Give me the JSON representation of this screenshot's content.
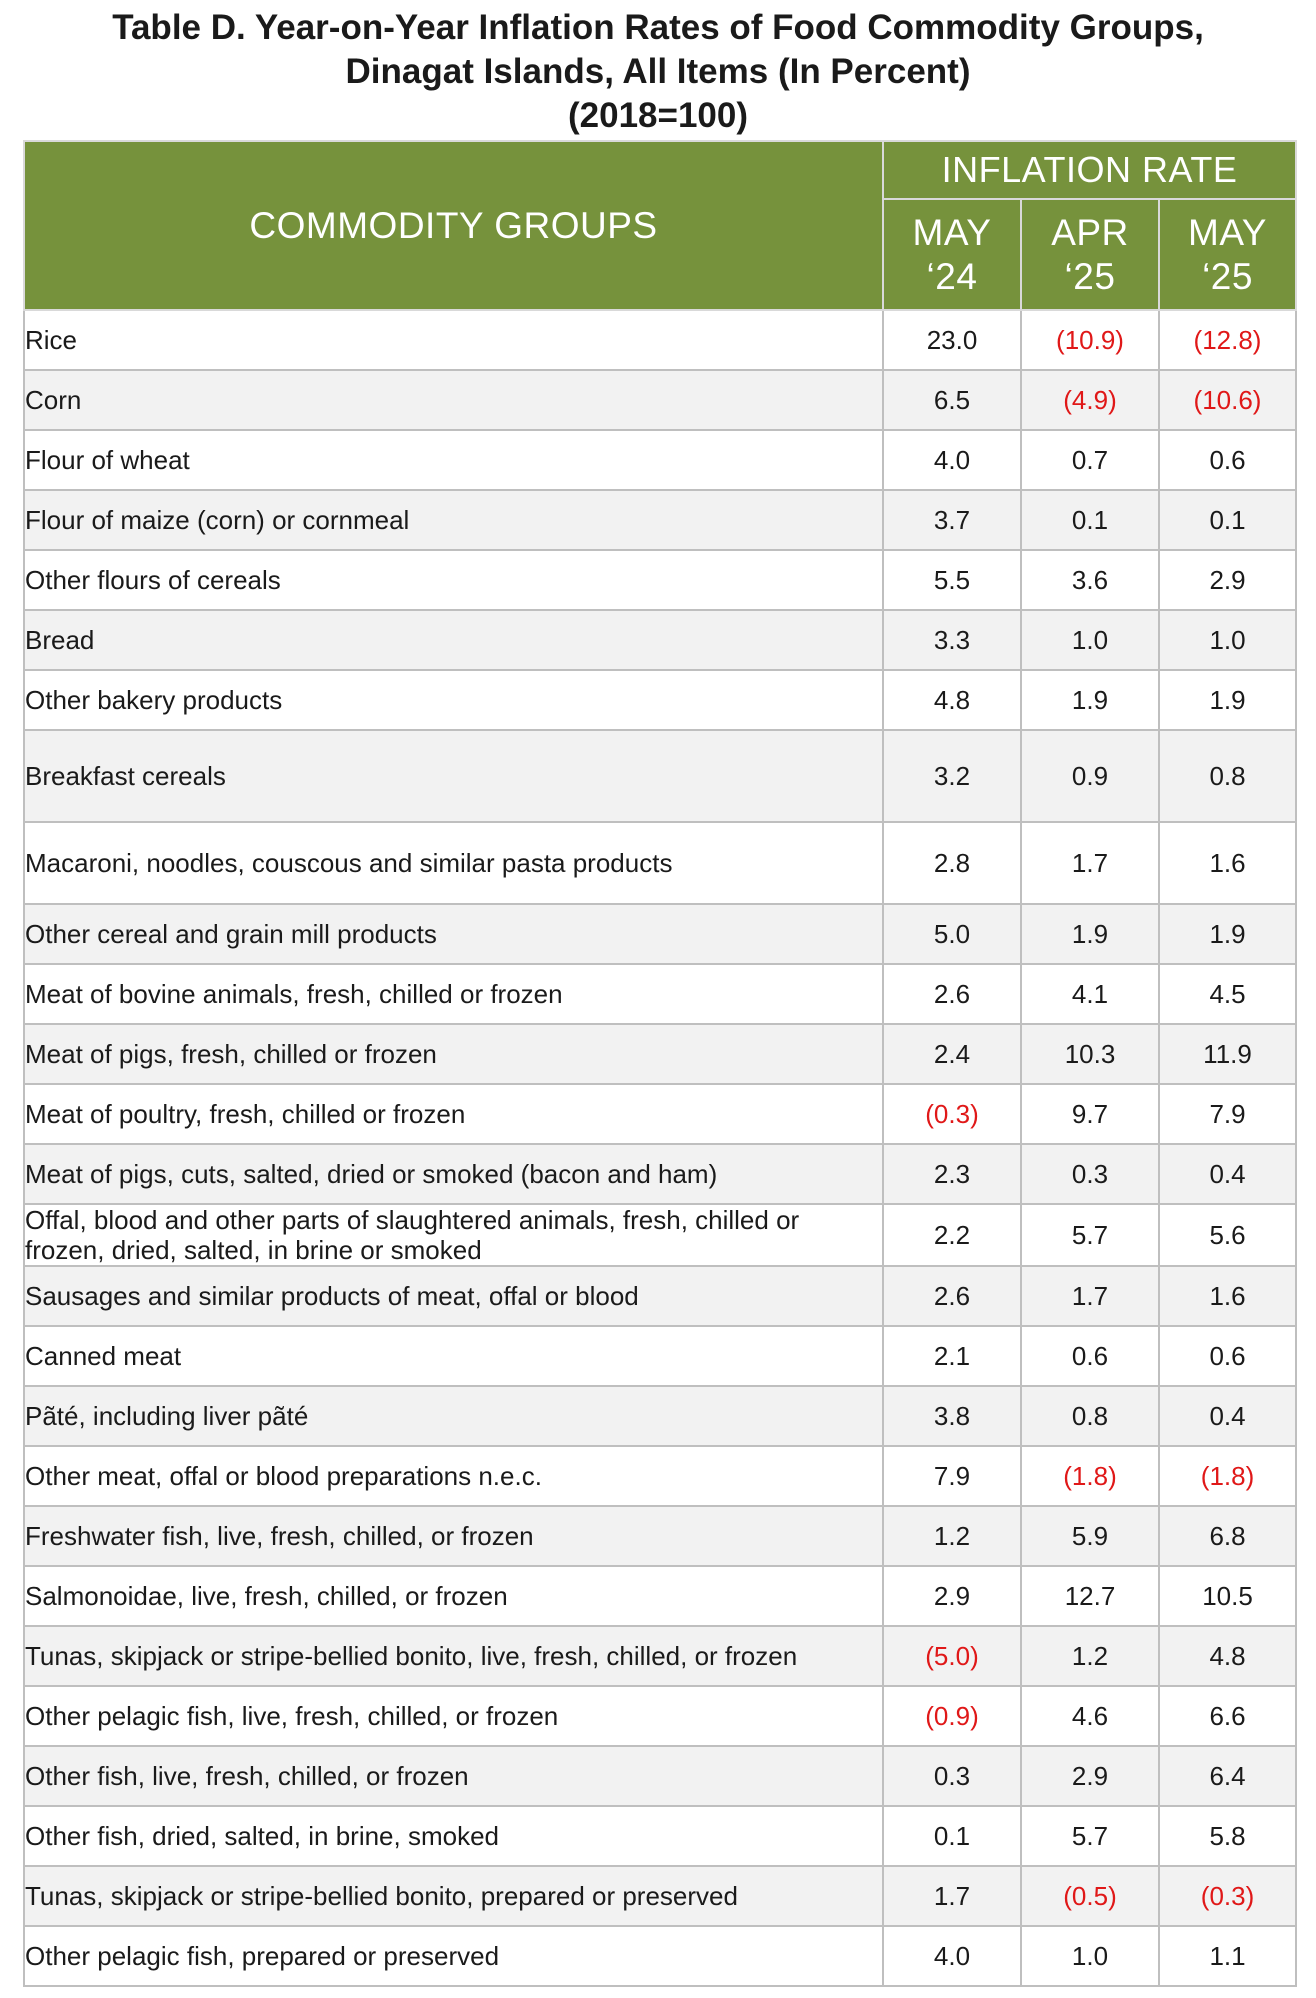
{
  "title": {
    "line1": "Table D. Year-on-Year Inflation Rates of Food Commodity Groups,",
    "line2": "Dinagat Islands, All Items (In Percent)",
    "line3": "(2018=100)"
  },
  "header": {
    "commodity_groups": "COMMODITY GROUPS",
    "inflation_rate": "INFLATION RATE",
    "col1_month": "MAY",
    "col1_year": "‘24",
    "col2_month": "APR",
    "col2_year": "‘25",
    "col3_month": "MAY",
    "col3_year": "‘25"
  },
  "colors": {
    "header_bg": "#76923c",
    "negative": "#e01818",
    "stripe": "#f2f2f2"
  },
  "rows": [
    {
      "name": "Rice",
      "v1": "23.0",
      "v2": "(10.9)",
      "v3": "(12.8)"
    },
    {
      "name": "Corn",
      "v1": "6.5",
      "v2": "(4.9)",
      "v3": "(10.6)"
    },
    {
      "name": "Flour of wheat",
      "v1": "4.0",
      "v2": "0.7",
      "v3": "0.6"
    },
    {
      "name": "Flour of maize (corn) or cornmeal",
      "v1": "3.7",
      "v2": "0.1",
      "v3": "0.1"
    },
    {
      "name": "Other flours of cereals",
      "v1": "5.5",
      "v2": "3.6",
      "v3": "2.9"
    },
    {
      "name": "Bread",
      "v1": "3.3",
      "v2": "1.0",
      "v3": "1.0"
    },
    {
      "name": "Other bakery products",
      "v1": "4.8",
      "v2": "1.9",
      "v3": "1.9"
    },
    {
      "name": "Breakfast cereals",
      "v1": "3.2",
      "v2": "0.9",
      "v3": "0.8"
    },
    {
      "name": "Macaroni, noodles, couscous and similar pasta products",
      "v1": "2.8",
      "v2": "1.7",
      "v3": "1.6"
    },
    {
      "name": "Other cereal and grain mill products",
      "v1": "5.0",
      "v2": "1.9",
      "v3": "1.9"
    },
    {
      "name": "Meat of bovine animals, fresh, chilled or frozen",
      "v1": "2.6",
      "v2": "4.1",
      "v3": "4.5"
    },
    {
      "name": "Meat of pigs, fresh, chilled or frozen",
      "v1": "2.4",
      "v2": "10.3",
      "v3": "11.9"
    },
    {
      "name": "Meat of poultry, fresh, chilled or frozen",
      "v1": "(0.3)",
      "v2": "9.7",
      "v3": "7.9"
    },
    {
      "name": "Meat of pigs, cuts, salted, dried or smoked (bacon and ham)",
      "v1": "2.3",
      "v2": "0.3",
      "v3": "0.4"
    },
    {
      "name": "Offal, blood and other parts of slaughtered animals, fresh, chilled or frozen, dried, salted, in brine or smoked",
      "v1": "2.2",
      "v2": "5.7",
      "v3": "5.6"
    },
    {
      "name": "Sausages and similar products of meat, offal or blood",
      "v1": "2.6",
      "v2": "1.7",
      "v3": "1.6"
    },
    {
      "name": "Canned meat",
      "v1": "2.1",
      "v2": "0.6",
      "v3": "0.6"
    },
    {
      "name": "Pãté, including liver pãté",
      "v1": "3.8",
      "v2": "0.8",
      "v3": "0.4"
    },
    {
      "name": "Other meat, offal or blood preparations n.e.c.",
      "v1": "7.9",
      "v2": "(1.8)",
      "v3": "(1.8)"
    },
    {
      "name": "Freshwater fish, live, fresh, chilled, or frozen",
      "v1": "1.2",
      "v2": "5.9",
      "v3": "6.8"
    },
    {
      "name": "Salmonoidae, live, fresh, chilled, or frozen",
      "v1": "2.9",
      "v2": "12.7",
      "v3": "10.5"
    },
    {
      "name": "Tunas, skipjack or stripe-bellied bonito, live, fresh, chilled, or frozen",
      "v1": "(5.0)",
      "v2": "1.2",
      "v3": "4.8"
    },
    {
      "name": "Other pelagic fish, live, fresh, chilled, or frozen",
      "v1": "(0.9)",
      "v2": "4.6",
      "v3": "6.6"
    },
    {
      "name": "Other fish, live, fresh, chilled, or frozen",
      "v1": "0.3",
      "v2": "2.9",
      "v3": "6.4"
    },
    {
      "name": "Other fish, dried, salted, in brine, smoked",
      "v1": "0.1",
      "v2": "5.7",
      "v3": "5.8"
    },
    {
      "name": "Tunas, skipjack or stripe-bellied bonito, prepared or preserved",
      "v1": "1.7",
      "v2": "(0.5)",
      "v3": "(0.3)"
    },
    {
      "name": "Other pelagic fish, prepared or preserved",
      "v1": "4.0",
      "v2": "1.0",
      "v3": "1.1"
    }
  ]
}
